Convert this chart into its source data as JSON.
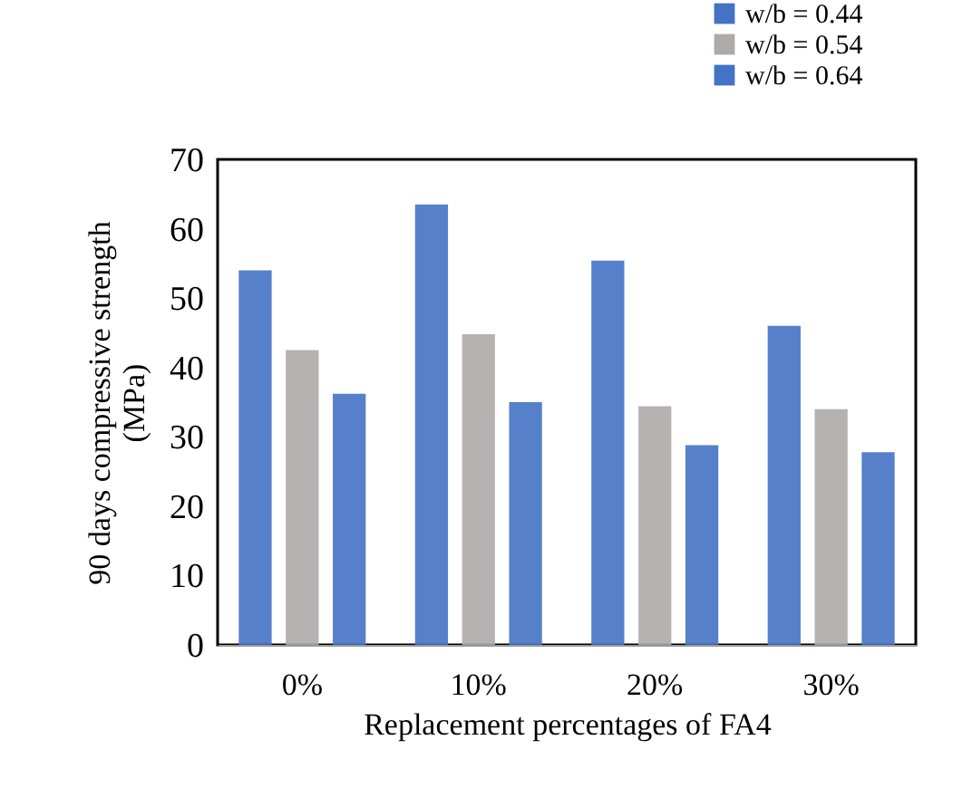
{
  "chart_data": {
    "type": "bar",
    "xlabel": "Replacement percentages of FA4",
    "ylabel": "90 days compressive strength\n(MPa)",
    "categories": [
      "0%",
      "10%",
      "20%",
      "30%"
    ],
    "series": [
      {
        "name": "w/b = 0.44",
        "color": "#4472c4",
        "values": [
          54.0,
          63.5,
          55.4,
          46.0
        ]
      },
      {
        "name": "w/b = 0.54",
        "color": "#aeaaaa",
        "values": [
          42.5,
          44.8,
          34.4,
          34.0
        ]
      },
      {
        "name": "w/b = 0.64",
        "color": "#4472c4",
        "values": [
          36.2,
          35.0,
          28.8,
          27.8
        ]
      }
    ],
    "ylim": [
      0,
      70
    ],
    "yticks": [
      0,
      10,
      20,
      30,
      40,
      50,
      60,
      70
    ],
    "grid": false,
    "legend": "top right"
  }
}
